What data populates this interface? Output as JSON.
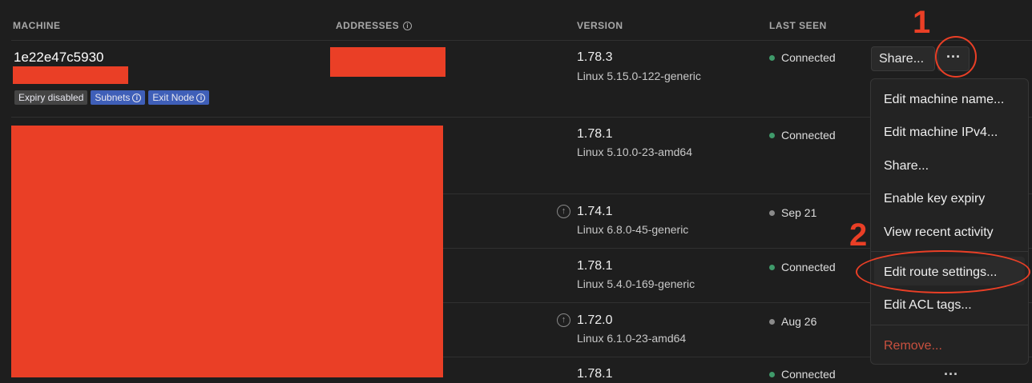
{
  "headers": {
    "machine": "MACHINE",
    "addresses": "ADDRESSES",
    "version": "VERSION",
    "last_seen": "LAST SEEN"
  },
  "rows": [
    {
      "name": "1e22e47c5930",
      "badges": [
        "Expiry disabled",
        "Subnets",
        "Exit Node"
      ],
      "version": "1.78.3",
      "os": "Linux 5.15.0-122-generic",
      "status": "Connected"
    },
    {
      "version": "1.78.1",
      "os": "Linux 5.10.0-23-amd64",
      "status": "Connected"
    },
    {
      "version": "1.74.1",
      "os": "Linux 6.8.0-45-generic",
      "status": "Sep 21",
      "update_available": true
    },
    {
      "version": "1.78.1",
      "os": "Linux 5.4.0-169-generic",
      "status": "Connected"
    },
    {
      "version": "1.72.0",
      "os": "Linux 6.1.0-23-amd64",
      "status": "Aug 26",
      "update_available": true
    },
    {
      "version": "1.78.1",
      "status": "Connected"
    }
  ],
  "share_label": "Share...",
  "menu": [
    "Edit machine name...",
    "Edit machine IPv4...",
    "Share...",
    "Enable key expiry",
    "View recent activity",
    "Edit route settings...",
    "Edit ACL tags...",
    "Remove..."
  ],
  "annotations": [
    "1",
    "2"
  ],
  "colors": {
    "connected": "#3f9a6a",
    "offline": "#8a8a8a",
    "badge_gray": "#444444",
    "badge_blue": "#3f5fb8",
    "danger": "#c8503f",
    "annotation": "#ea3f26"
  }
}
